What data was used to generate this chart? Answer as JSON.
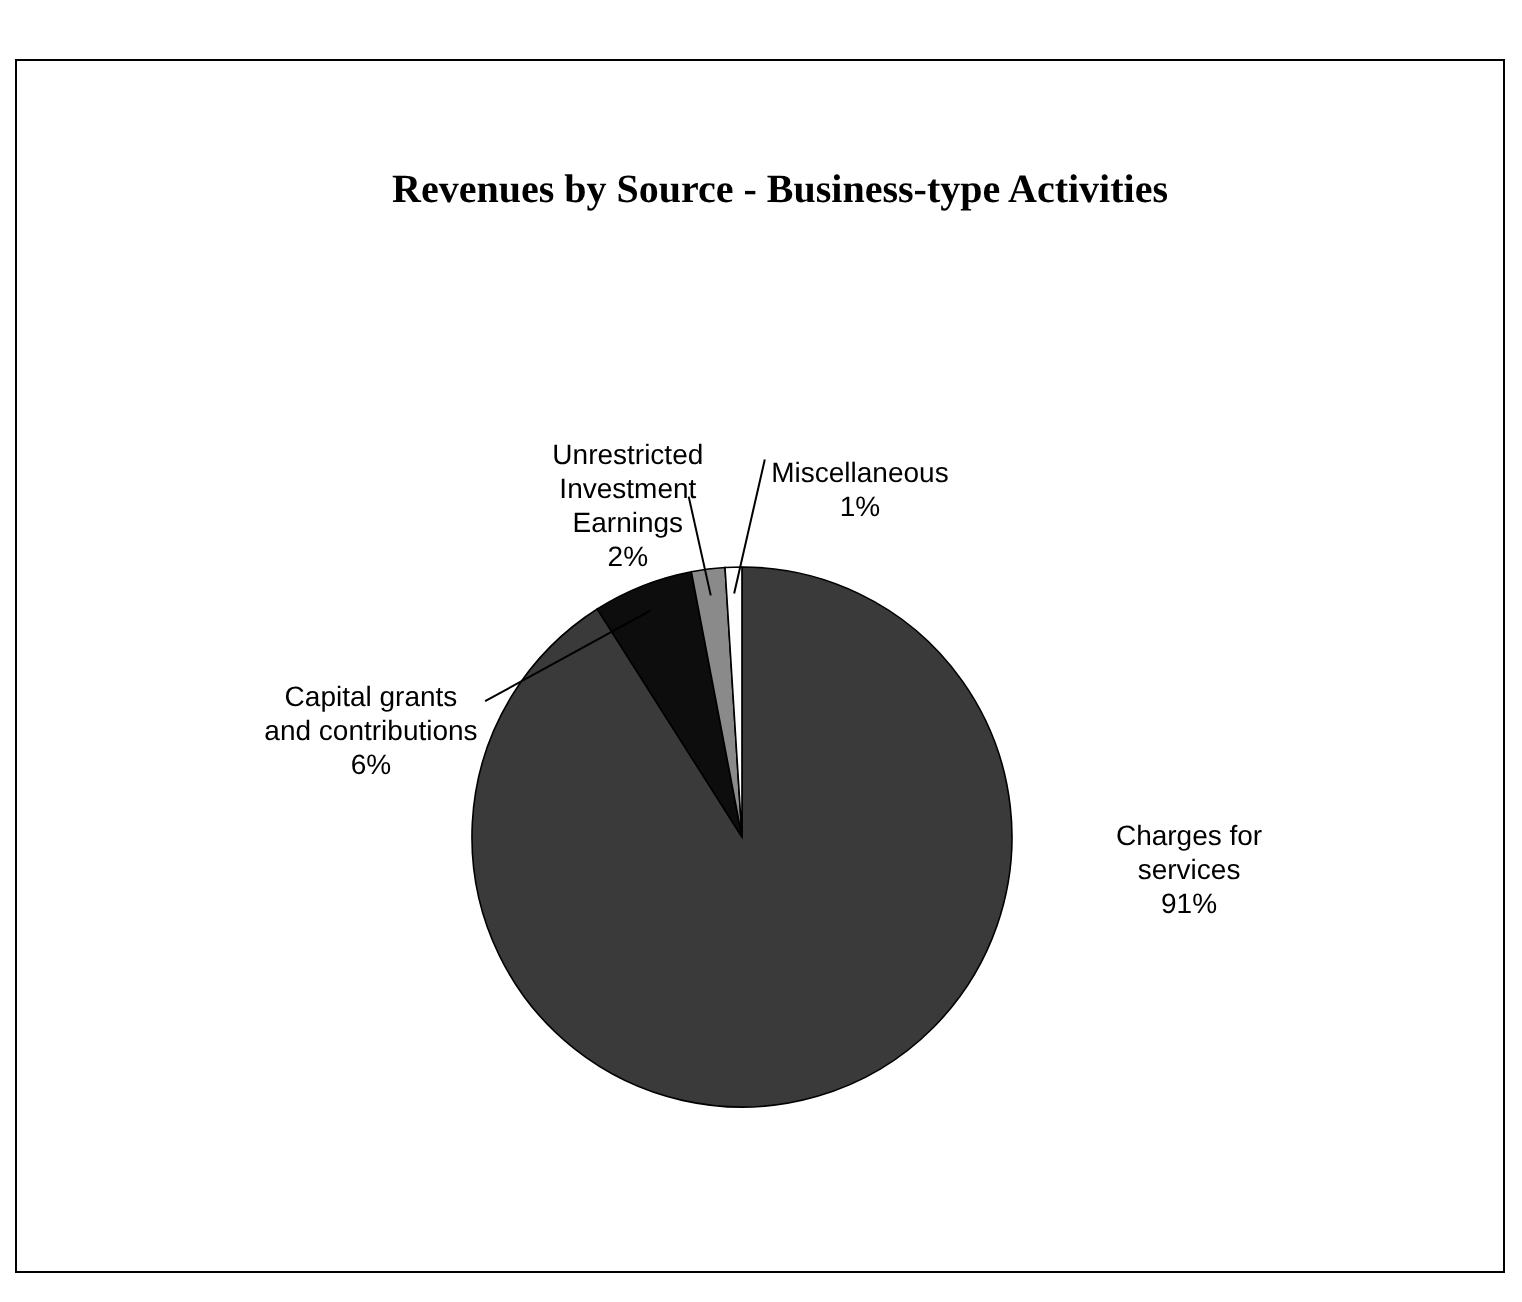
{
  "chart_data": {
    "type": "pie",
    "title": "Revenues by Source - Business-type Activities",
    "categories": [
      "Charges for services",
      "Capital grants and contributions",
      "Unrestricted Investment Earnings",
      "Miscellaneous"
    ],
    "values": [
      91,
      6,
      2,
      1
    ],
    "colors": [
      "#3a3a3a",
      "#0d0d0d",
      "#8a8a8a",
      "#ffffff"
    ],
    "value_labels": [
      "91%",
      "6%",
      "2%",
      "1%"
    ],
    "data_labels": true
  }
}
